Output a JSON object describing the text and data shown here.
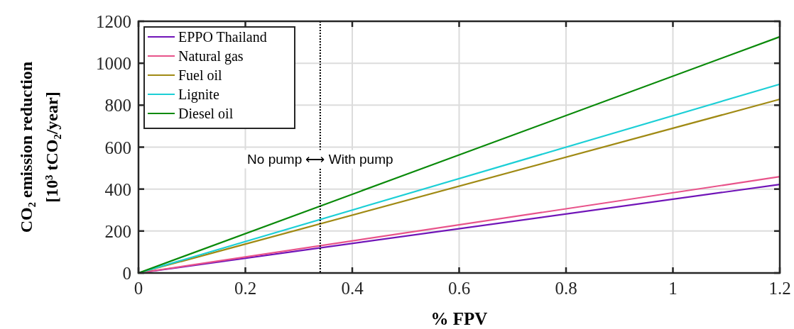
{
  "chart_data": {
    "type": "line",
    "xlabel": "% FPV",
    "ylabel": "CO₂ emission reduction\n[10³ tCO₂/year]",
    "x": [
      0,
      1.2
    ],
    "xlim": [
      0,
      1.2
    ],
    "xticks": [
      0,
      0.2,
      0.4,
      0.6,
      0.8,
      1,
      1.2
    ],
    "ylim": [
      0,
      1200
    ],
    "yticks": [
      0,
      200,
      400,
      600,
      800,
      1000,
      1200
    ],
    "grid": true,
    "legend": "top left",
    "marker": "none",
    "line_style": "solid",
    "ref_lines": [
      {
        "axis": "x",
        "value": 0.34,
        "label": "No pump ⟷ With pump",
        "color": "#000000",
        "line_style": "dotted"
      }
    ],
    "series": [
      {
        "name": "EPPO Thailand",
        "color": "#7014b8",
        "values": [
          0,
          422
        ]
      },
      {
        "name": "Natural gas",
        "color": "#e8538a",
        "values": [
          0,
          459
        ]
      },
      {
        "name": "Fuel oil",
        "color": "#a08a14",
        "values": [
          0,
          828
        ]
      },
      {
        "name": "Lignite",
        "color": "#1ccfd6",
        "values": [
          0,
          900
        ]
      },
      {
        "name": "Diesel oil",
        "color": "#0a8a0a",
        "values": [
          0,
          1126
        ]
      }
    ]
  }
}
